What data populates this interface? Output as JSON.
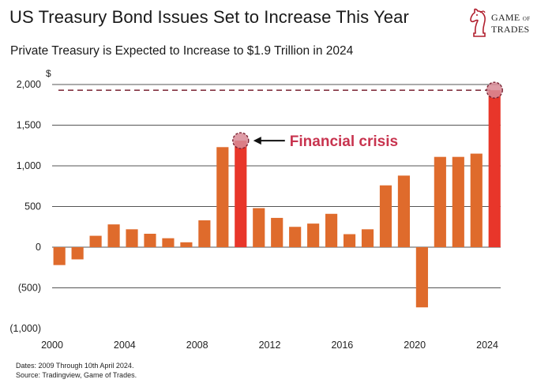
{
  "header": {
    "title": "US Treasury Bond Issues Set to Increase This Year",
    "subtitle": "Private Treasury is Expected to Increase to $1.9 Trillion in 2024"
  },
  "logo": {
    "line1_a": "G",
    "line1_b": "AME",
    "line1_c": "OF",
    "line2": "TRADES",
    "icon": "chess-knight-icon"
  },
  "footnotes": {
    "dates": "Dates: 2009 Through 10th April 2024.",
    "source": "Source: Tradingview, Game of Trades."
  },
  "colors": {
    "bar": "#df6b2c",
    "highlight": "#e8362a",
    "marker": "#d88b96",
    "annotation": "#c8344f",
    "reference_line": "#7a2434",
    "gridline": "#555555"
  },
  "chart_data": {
    "type": "bar",
    "title": "US Treasury Bond Issues Set to Increase This Year",
    "subtitle": "Private Treasury is Expected to Increase to $1.9 Trillion in 2024",
    "ylabel": "$",
    "ylim": [
      -1000,
      2000
    ],
    "yticks": [
      2000,
      1500,
      1000,
      500,
      0,
      -500,
      -1000
    ],
    "ytick_labels": [
      "2,000",
      "1,500",
      "1,000",
      "500",
      "0",
      "(500)",
      "(1,000)"
    ],
    "xlim": [
      2000,
      2025
    ],
    "xtick_labels": [
      "2000",
      "2004",
      "2008",
      "2012",
      "2016",
      "2020",
      "2024"
    ],
    "grid": true,
    "x": [
      2000.4,
      2001.4,
      2002.4,
      2003.4,
      2004.4,
      2005.4,
      2006.4,
      2007.4,
      2008.4,
      2009.4,
      2010.4,
      2011.4,
      2012.4,
      2013.4,
      2014.4,
      2015.4,
      2016.4,
      2017.4,
      2018.4,
      2019.4,
      2020.4,
      2021.4,
      2022.4,
      2023.4,
      2024.4
    ],
    "values": [
      -220,
      -150,
      140,
      280,
      220,
      165,
      110,
      60,
      330,
      1230,
      1310,
      480,
      360,
      250,
      290,
      410,
      160,
      220,
      760,
      880,
      -740,
      1110,
      1110,
      1150,
      1930
    ],
    "highlighted_x": [
      2010.4,
      2024.4
    ],
    "reference_line_value": 1930,
    "annotations": [
      {
        "text": "Financial crisis",
        "x": 2010.4,
        "y": 1310
      }
    ]
  }
}
